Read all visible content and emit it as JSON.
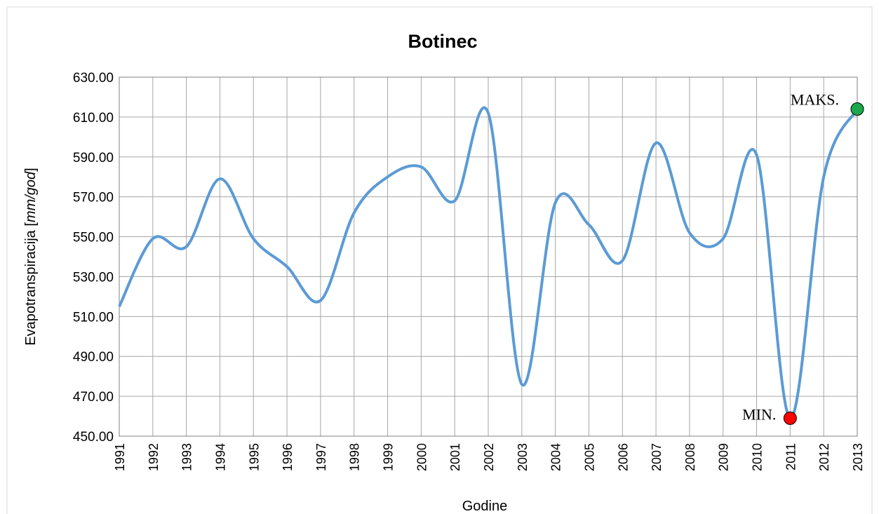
{
  "chart_data": {
    "type": "line",
    "title": "Botinec",
    "xlabel": "Godine",
    "ylabel": [
      "Evapotranspiracija [",
      "mm/god",
      "]"
    ],
    "categories": [
      "1991",
      "1992",
      "1993",
      "1994",
      "1995",
      "1996",
      "1997",
      "1998",
      "1999",
      "2000",
      "2001",
      "2002",
      "2003",
      "2004",
      "2005",
      "2006",
      "2007",
      "2008",
      "2009",
      "2010",
      "2011",
      "2012",
      "2013"
    ],
    "series": [
      {
        "name": "Botinec",
        "color": "#5b9bd5",
        "values": [
          515,
          549,
          545,
          579,
          549,
          535,
          518,
          562,
          580,
          585,
          568,
          612,
          476,
          567,
          556,
          538,
          597,
          552,
          549,
          591,
          459,
          580,
          614
        ]
      }
    ],
    "ylim": [
      450,
      630
    ],
    "yticks": [
      {
        "value": 450,
        "label": "450.00"
      },
      {
        "value": 470,
        "label": "470.00"
      },
      {
        "value": 490,
        "label": "490.00"
      },
      {
        "value": 510,
        "label": "510.00"
      },
      {
        "value": 530,
        "label": "530.00"
      },
      {
        "value": 550,
        "label": "550.00"
      },
      {
        "value": 570,
        "label": "570.00"
      },
      {
        "value": 590,
        "label": "590.00"
      },
      {
        "value": 610,
        "label": "610.00"
      },
      {
        "value": 630,
        "label": "630.00"
      }
    ],
    "grid": true,
    "max_label": "MAKS.",
    "max_color": "#1aa84a",
    "min_label": "MIN.",
    "min_color": "#ff0000"
  }
}
